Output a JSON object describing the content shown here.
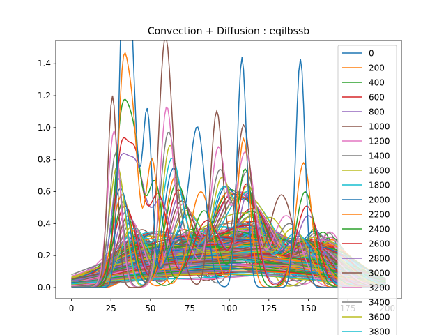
{
  "chart_data": {
    "type": "line",
    "title": "Convection + Diffusion : eqilbssb",
    "xlabel": "",
    "ylabel": "",
    "xlim": [
      -9.95,
      208.95
    ],
    "ylim": [
      -0.07,
      1.545
    ],
    "x_ticks": [
      0,
      25,
      50,
      75,
      100,
      125,
      150,
      175,
      200
    ],
    "y_ticks": [
      0.0,
      0.2,
      0.4,
      0.6,
      0.8,
      1.0,
      1.2,
      1.4
    ],
    "x_tick_labels": [
      "0",
      "25",
      "50",
      "75",
      "100",
      "125",
      "150",
      "175",
      "200"
    ],
    "y_tick_labels": [
      "0.0",
      "0.2",
      "0.4",
      "0.6",
      "0.8",
      "1.0",
      "1.2",
      "1.4"
    ],
    "x_domain": [
      0,
      199
    ],
    "grid": false,
    "legend_position": "right, extends below the axes",
    "legend_entries": [
      "0",
      "200",
      "400",
      "600",
      "800",
      "1000",
      "1200",
      "1400",
      "1600",
      "1800",
      "2000",
      "2200",
      "2400",
      "2600",
      "2800",
      "3000",
      "3200",
      "3400",
      "3600",
      "3800"
    ],
    "color_cycle": [
      "#1f77b4",
      "#ff7f0e",
      "#2ca02c",
      "#d62728",
      "#9467bd",
      "#8c564b",
      "#e377c2",
      "#7f7f7f",
      "#bcbd22",
      "#17becf"
    ],
    "series": [
      {
        "name": "0",
        "peaks": [
          [
            37,
            1.47,
            4
          ],
          [
            108,
            1.44,
            3
          ],
          [
            145,
            1.43,
            3
          ],
          [
            33,
            1.32,
            3
          ],
          [
            48,
            1.08,
            3
          ],
          [
            80,
            0.95,
            5
          ],
          [
            67,
            0.3,
            7
          ]
        ]
      },
      {
        "name": "200",
        "peaks": [
          [
            38,
            1.1,
            4
          ],
          [
            109,
            0.93,
            4
          ],
          [
            147,
            0.78,
            5
          ],
          [
            32,
            1.0,
            3
          ],
          [
            51,
            0.8,
            4
          ],
          [
            82,
            0.6,
            7
          ]
        ]
      },
      {
        "name": "400",
        "peaks": [
          [
            39,
            0.92,
            5
          ],
          [
            110,
            0.74,
            5
          ],
          [
            148,
            0.6,
            6
          ],
          [
            31,
            0.82,
            4
          ],
          [
            53,
            0.65,
            5
          ],
          [
            84,
            0.48,
            8
          ]
        ]
      },
      {
        "name": "600",
        "peaks": [
          [
            40,
            0.8,
            5
          ],
          [
            111,
            0.64,
            6
          ],
          [
            149,
            0.51,
            7
          ],
          [
            31,
            0.72,
            4
          ],
          [
            55,
            0.58,
            6
          ],
          [
            86,
            0.42,
            9
          ]
        ]
      },
      {
        "name": "800",
        "peaks": [
          [
            41,
            0.72,
            6
          ],
          [
            112,
            0.58,
            6
          ],
          [
            150,
            0.45,
            8
          ],
          [
            30,
            0.65,
            5
          ],
          [
            57,
            0.53,
            6
          ],
          [
            88,
            0.38,
            9
          ]
        ]
      },
      {
        "name": "1000",
        "peaks": [
          [
            26,
            1.2,
            3
          ],
          [
            59,
            1.16,
            4
          ],
          [
            92,
            1.1,
            4
          ],
          [
            109,
            1.01,
            5
          ],
          [
            133,
            0.58,
            8
          ],
          [
            63,
            0.5,
            6
          ]
        ]
      },
      {
        "name": "1200",
        "peaks": [
          [
            27,
            0.98,
            4
          ],
          [
            60,
            0.98,
            4
          ],
          [
            93,
            0.86,
            5
          ],
          [
            110,
            0.84,
            6
          ],
          [
            136,
            0.45,
            9
          ],
          [
            70,
            0.32,
            8
          ]
        ]
      },
      {
        "name": "1400",
        "peaks": [
          [
            28,
            0.84,
            4
          ],
          [
            61,
            0.86,
            5
          ],
          [
            94,
            0.72,
            6
          ],
          [
            111,
            0.7,
            6
          ],
          [
            138,
            0.4,
            10
          ],
          [
            72,
            0.28,
            8
          ]
        ]
      },
      {
        "name": "1600",
        "peaks": [
          [
            29,
            0.76,
            5
          ],
          [
            62,
            0.78,
            5
          ],
          [
            95,
            0.64,
            6
          ],
          [
            112,
            0.62,
            7
          ],
          [
            140,
            0.37,
            10
          ],
          [
            74,
            0.26,
            9
          ]
        ]
      },
      {
        "name": "1800",
        "peaks": [
          [
            30,
            0.68,
            5
          ],
          [
            63,
            0.72,
            6
          ],
          [
            96,
            0.58,
            7
          ],
          [
            113,
            0.56,
            7
          ],
          [
            142,
            0.34,
            11
          ],
          [
            76,
            0.24,
            9
          ]
        ]
      },
      {
        "name": "2000",
        "peaks": [
          [
            31,
            0.62,
            6
          ],
          [
            64,
            0.66,
            6
          ],
          [
            97,
            0.54,
            7
          ],
          [
            114,
            0.52,
            8
          ],
          [
            144,
            0.32,
            11
          ],
          [
            78,
            0.22,
            10
          ]
        ]
      },
      {
        "name": "2200",
        "peaks": [
          [
            32,
            0.58,
            6
          ],
          [
            65,
            0.62,
            6
          ],
          [
            98,
            0.5,
            8
          ],
          [
            115,
            0.48,
            8
          ],
          [
            146,
            0.3,
            12
          ],
          [
            80,
            0.21,
            10
          ]
        ]
      },
      {
        "name": "2400",
        "peaks": [
          [
            33,
            0.54,
            6
          ],
          [
            66,
            0.58,
            7
          ],
          [
            99,
            0.47,
            8
          ],
          [
            116,
            0.45,
            9
          ],
          [
            148,
            0.29,
            12
          ],
          [
            82,
            0.2,
            11
          ]
        ]
      },
      {
        "name": "2600",
        "peaks": [
          [
            34,
            0.51,
            7
          ],
          [
            67,
            0.55,
            7
          ],
          [
            100,
            0.44,
            9
          ],
          [
            117,
            0.42,
            9
          ],
          [
            150,
            0.28,
            13
          ],
          [
            84,
            0.19,
            11
          ]
        ]
      },
      {
        "name": "2800",
        "peaks": [
          [
            35,
            0.48,
            7
          ],
          [
            68,
            0.52,
            7
          ],
          [
            101,
            0.42,
            9
          ],
          [
            118,
            0.4,
            10
          ],
          [
            152,
            0.27,
            13
          ],
          [
            86,
            0.18,
            12
          ]
        ]
      },
      {
        "name": "3000",
        "peaks": [
          [
            36,
            0.45,
            7
          ],
          [
            69,
            0.49,
            8
          ],
          [
            102,
            0.4,
            9
          ],
          [
            119,
            0.38,
            10
          ],
          [
            154,
            0.26,
            14
          ],
          [
            88,
            0.17,
            12
          ]
        ]
      },
      {
        "name": "3200",
        "peaks": [
          [
            37,
            0.43,
            8
          ],
          [
            70,
            0.47,
            8
          ],
          [
            103,
            0.38,
            10
          ],
          [
            120,
            0.36,
            11
          ],
          [
            156,
            0.25,
            14
          ],
          [
            90,
            0.16,
            13
          ]
        ]
      },
      {
        "name": "3400",
        "peaks": [
          [
            38,
            0.41,
            8
          ],
          [
            71,
            0.45,
            8
          ],
          [
            104,
            0.36,
            10
          ],
          [
            121,
            0.35,
            11
          ],
          [
            158,
            0.24,
            15
          ],
          [
            92,
            0.16,
            13
          ]
        ]
      },
      {
        "name": "3600",
        "peaks": [
          [
            39,
            0.39,
            8
          ],
          [
            72,
            0.43,
            9
          ],
          [
            105,
            0.35,
            11
          ],
          [
            122,
            0.33,
            12
          ],
          [
            160,
            0.23,
            15
          ],
          [
            94,
            0.15,
            14
          ]
        ]
      },
      {
        "name": "3800",
        "peaks": [
          [
            40,
            0.37,
            9
          ],
          [
            73,
            0.41,
            9
          ],
          [
            106,
            0.33,
            11
          ],
          [
            123,
            0.32,
            12
          ],
          [
            162,
            0.22,
            16
          ],
          [
            96,
            0.15,
            14
          ]
        ]
      }
    ],
    "background_curves": {
      "count": 200,
      "note": "many more overlapping curves beyond the legend entries",
      "peak_centers": [
        35,
        68,
        100,
        120,
        155
      ],
      "amplitude_range": [
        0.03,
        0.32
      ]
    }
  }
}
